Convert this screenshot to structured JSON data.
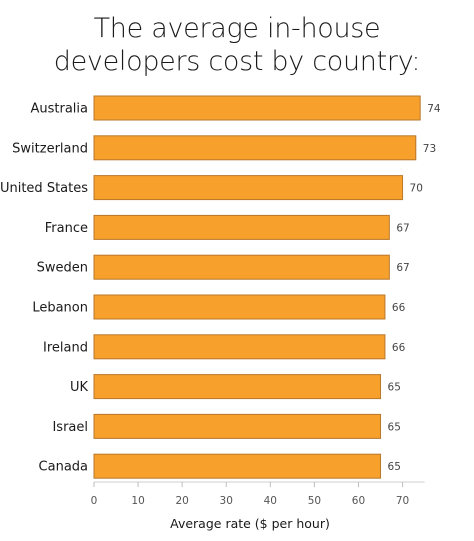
{
  "chart_data": {
    "type": "bar",
    "orientation": "horizontal",
    "title_line1": "The average in-house",
    "title_line2": "developers cost by country:",
    "xlabel": "Average rate ($ per hour)",
    "ylabel": "",
    "categories": [
      "Australia",
      "Switzerland",
      "United States",
      "France",
      "Sweden",
      "Lebanon",
      "Ireland",
      "UK",
      "Israel",
      "Canada"
    ],
    "values": [
      74,
      73,
      70,
      67,
      67,
      66,
      66,
      65,
      65,
      65
    ],
    "value_labels": [
      "74",
      "73",
      "70",
      "67",
      "67",
      "66",
      "66",
      "65",
      "65",
      "65"
    ],
    "xticks": [
      0,
      10,
      20,
      30,
      40,
      50,
      60,
      70
    ],
    "xtick_labels": [
      "0",
      "10",
      "20",
      "30",
      "40",
      "50",
      "60",
      "70"
    ],
    "xlim": [
      0,
      75
    ],
    "grid": false,
    "legend": "none",
    "bar_color": "#F7A12C",
    "bar_edge_color": "#B9772A"
  }
}
